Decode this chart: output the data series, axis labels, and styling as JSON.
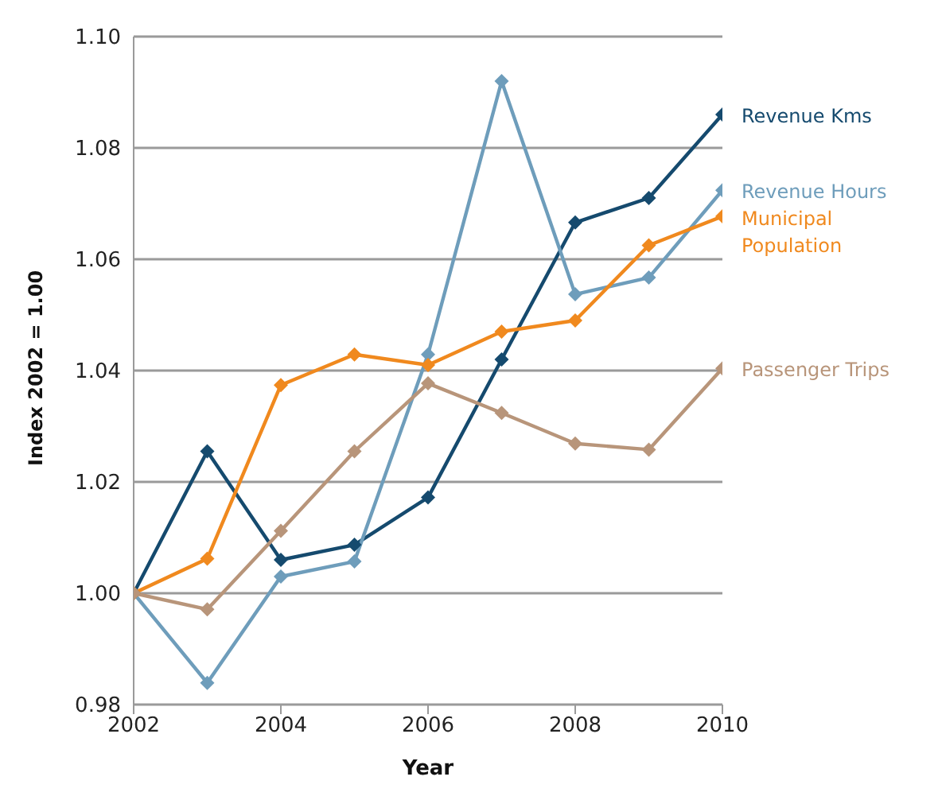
{
  "chart_data": {
    "type": "line",
    "xlabel": "Year",
    "ylabel": "Index 2002 = 1.00",
    "x": [
      2002,
      2003,
      2004,
      2005,
      2006,
      2007,
      2008,
      2009,
      2010
    ],
    "series": [
      {
        "name": "Revenue Kms",
        "color": "#154a6e",
        "values": [
          1.0,
          1.0255,
          1.006,
          1.0087,
          1.0172,
          1.042,
          1.0666,
          1.071,
          1.086
        ]
      },
      {
        "name": "Revenue Hours",
        "color": "#6e9dbb",
        "values": [
          1.0,
          0.9839,
          1.003,
          1.0057,
          1.0429,
          1.092,
          1.0537,
          1.0567,
          1.0724
        ]
      },
      {
        "name": "Municipal Population",
        "color": "#f0891e",
        "values": [
          1.0,
          1.0062,
          1.0374,
          1.0429,
          1.041,
          1.047,
          1.049,
          1.0625,
          1.0677
        ]
      },
      {
        "name": "Passenger Trips",
        "color": "#b8957a",
        "values": [
          1.0,
          0.9971,
          1.0112,
          1.0255,
          1.0377,
          1.0324,
          1.0269,
          1.0258,
          1.0404
        ]
      }
    ],
    "xlim": [
      2002,
      2010
    ],
    "xticks": [
      2002,
      2004,
      2006,
      2008,
      2010
    ],
    "ylim": [
      0.98,
      1.1
    ],
    "yticks": [
      {
        "value": 0.98,
        "label": "0.98"
      },
      {
        "value": 1.0,
        "label": "1.00"
      },
      {
        "value": 1.02,
        "label": "1.02"
      },
      {
        "value": 1.04,
        "label": "1.04"
      },
      {
        "value": 1.06,
        "label": "1.06"
      },
      {
        "value": 1.08,
        "label": "1.08"
      },
      {
        "value": 1.1,
        "label": "1.10"
      }
    ],
    "grid": "y",
    "marker": "diamond",
    "line_style": "solid",
    "legend": false
  }
}
